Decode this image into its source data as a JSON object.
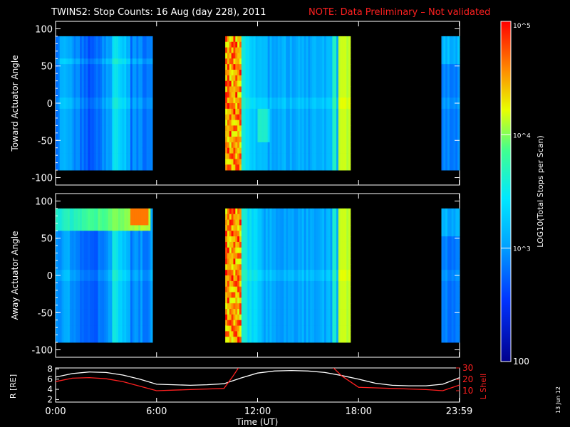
{
  "header": {
    "title": "TWINS2: Stop Counts: 16 Aug (day 228), 2011",
    "note": "NOTE: Data Preliminary – Not validated",
    "note_color": "#ff2020"
  },
  "side_date": "13 Jun 12",
  "chart_data": [
    {
      "type": "heatmap",
      "name": "toward",
      "ylabel": "Toward Actuator Angle",
      "ylim": [
        -110,
        110
      ],
      "yticks": [
        100,
        50,
        0,
        -50,
        -100
      ],
      "xlim": [
        0,
        24
      ],
      "data_range_y": [
        -90,
        90
      ],
      "data_gaps_hours": [
        [
          5.8,
          10.1
        ],
        [
          17.5,
          22.9
        ]
      ],
      "note": "log10 counts, mostly ~2.8-3.2 with high ~4.5-5 near 10-11 UT and ~4 near 17 UT"
    },
    {
      "type": "heatmap",
      "name": "away",
      "ylabel": "Away Actuator Angle",
      "ylim": [
        -110,
        110
      ],
      "yticks": [
        100,
        50,
        0,
        -50,
        -100
      ],
      "xlim": [
        0,
        24
      ],
      "data_range_y": [
        -90,
        90
      ],
      "data_gaps_hours": [
        [
          5.8,
          10.1
        ],
        [
          17.5,
          22.9
        ]
      ]
    },
    {
      "type": "line",
      "name": "orbit",
      "ylabel": "R [RE]",
      "y2label": "L Shell",
      "xlabel": "Time (UT)",
      "xticks": [
        "0:00",
        "6:00",
        "12:00",
        "18:00",
        "23:59"
      ],
      "xtick_hours": [
        0,
        6,
        12,
        18,
        23.98
      ],
      "yticks_left": [
        2,
        4,
        6,
        8
      ],
      "yticks_right": [
        10,
        20,
        30
      ],
      "ylim_left": [
        1.5,
        8.2
      ],
      "ylim_right": [
        0,
        30
      ],
      "series": [
        {
          "color": "#ffffff",
          "x": [
            0,
            1,
            2,
            3,
            4,
            5,
            6,
            7,
            8,
            9,
            10,
            11,
            12,
            13,
            14,
            15,
            16,
            17,
            18,
            19,
            20,
            21,
            22,
            23,
            24
          ],
          "y": [
            6.4,
            7.1,
            7.4,
            7.3,
            6.8,
            6.0,
            5.0,
            4.9,
            4.8,
            4.9,
            5.1,
            6.2,
            7.2,
            7.6,
            7.7,
            7.6,
            7.3,
            6.7,
            6.0,
            5.2,
            4.8,
            4.7,
            4.7,
            5.0,
            6.3
          ]
        },
        {
          "color": "#ff2020",
          "axis": "right",
          "x": [
            0,
            1,
            2,
            3,
            4,
            5,
            6,
            7,
            8,
            9,
            10,
            10.5,
            11,
            16.3,
            17,
            18,
            19,
            20,
            21,
            22,
            23,
            24
          ],
          "y": [
            18,
            21,
            21.5,
            20.5,
            18,
            14,
            10,
            10.5,
            11,
            11.5,
            12,
            22,
            33,
            33,
            23,
            13,
            12.5,
            12,
            11.5,
            11,
            10,
            15
          ]
        }
      ]
    }
  ],
  "colorbar": {
    "label": "LOG10(Total Stops per Scan)",
    "ticks": [
      "10^5",
      "10^4",
      "10^3",
      "100"
    ],
    "tick_values": [
      5,
      4,
      3,
      2
    ],
    "range": [
      2,
      5
    ]
  }
}
